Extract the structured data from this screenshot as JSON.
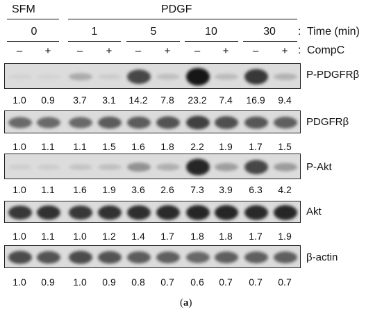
{
  "header": {
    "group_sfm": "SFM",
    "group_pdgf": "PDGF",
    "times": [
      "0",
      "1",
      "5",
      "10",
      "30"
    ],
    "colon": ":",
    "time_label": "Time (min)",
    "compc_label": "CompC",
    "signs": [
      "–",
      "+",
      "–",
      "+",
      "–",
      "+",
      "–",
      "+",
      "–",
      "+"
    ]
  },
  "panels": [
    {
      "label": "P-PDGFRβ",
      "values": [
        "1.0",
        "0.9",
        "3.7",
        "3.1",
        "14.2",
        "7.8",
        "23.2",
        "7.4",
        "16.9",
        "9.4"
      ],
      "intensity": [
        0.03,
        0.03,
        0.22,
        0.06,
        0.72,
        0.12,
        0.95,
        0.14,
        0.8,
        0.18
      ]
    },
    {
      "label": "PDGFRβ",
      "values": [
        "1.0",
        "1.1",
        "1.1",
        "1.5",
        "1.6",
        "1.8",
        "2.2",
        "1.9",
        "1.7",
        "1.5"
      ],
      "intensity": [
        0.55,
        0.55,
        0.55,
        0.62,
        0.62,
        0.66,
        0.75,
        0.68,
        0.64,
        0.6
      ]
    },
    {
      "label": "P-Akt",
      "values": [
        "1.0",
        "1.1",
        "1.6",
        "1.9",
        "3.6",
        "2.6",
        "7.3",
        "3.9",
        "6.3",
        "4.2"
      ],
      "intensity": [
        0.05,
        0.06,
        0.1,
        0.12,
        0.35,
        0.2,
        0.88,
        0.28,
        0.72,
        0.3
      ]
    },
    {
      "label": "Akt",
      "values": [
        "1.0",
        "1.1",
        "1.0",
        "1.2",
        "1.4",
        "1.7",
        "1.8",
        "1.8",
        "1.7",
        "1.9"
      ],
      "intensity": [
        0.8,
        0.82,
        0.8,
        0.82,
        0.84,
        0.86,
        0.88,
        0.88,
        0.86,
        0.88
      ]
    },
    {
      "label": "β-actin",
      "values": [
        "1.0",
        "0.9",
        "1.0",
        "0.9",
        "0.8",
        "0.7",
        "0.6",
        "0.7",
        "0.7",
        "0.7"
      ],
      "intensity": [
        0.7,
        0.66,
        0.7,
        0.66,
        0.62,
        0.6,
        0.56,
        0.6,
        0.6,
        0.6
      ]
    }
  ],
  "caption": {
    "open": "(",
    "letter": "a",
    "close": ")"
  }
}
